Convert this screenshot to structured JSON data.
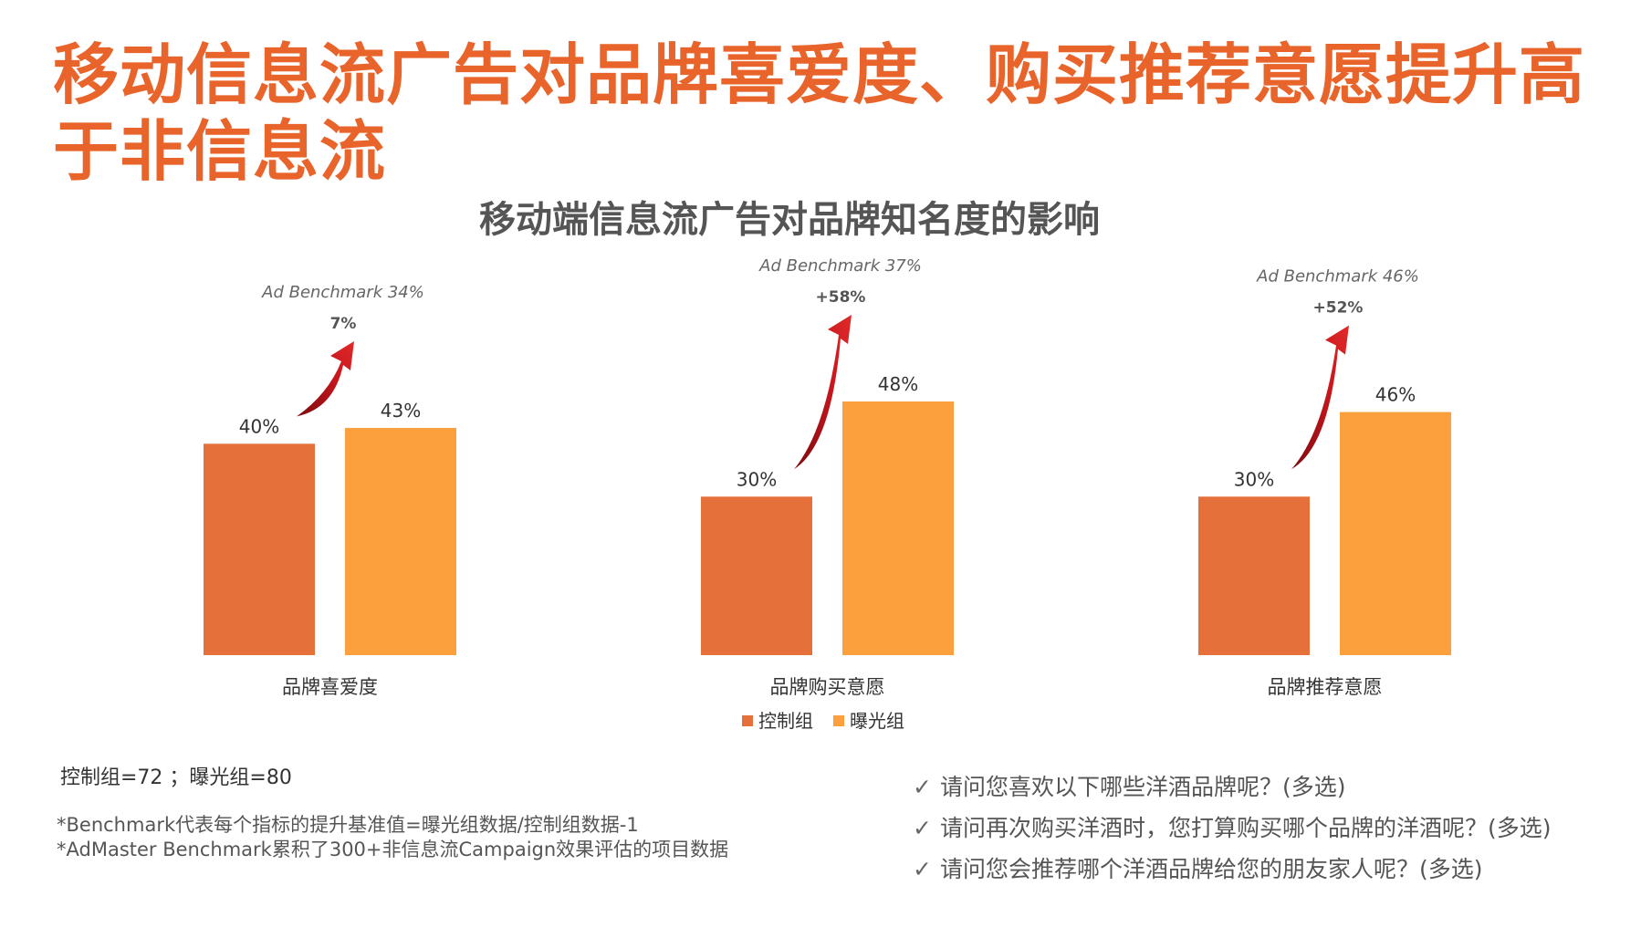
{
  "title": "移动信息流广告对品牌喜爱度、购买推荐意愿提升高于非信息流",
  "chart_data": {
    "type": "bar",
    "title": "移动端信息流广告对品牌知名度的影响",
    "categories": [
      "品牌喜爱度",
      "品牌购买意愿",
      "品牌推荐意愿"
    ],
    "series": [
      {
        "name": "控制组",
        "values": [
          40,
          30,
          30
        ],
        "labels": [
          "40%",
          "30%",
          "30%"
        ],
        "color": "#E5703A"
      },
      {
        "name": "曝光组",
        "values": [
          43,
          48,
          46
        ],
        "labels": [
          "43%",
          "48%",
          "46%"
        ],
        "color": "#FBA03C"
      }
    ],
    "unit": "%",
    "ylim": [
      0,
      48
    ],
    "lift_labels": [
      "7%",
      "+58%",
      "+52%"
    ],
    "benchmark_labels": [
      "Ad Benchmark 34%",
      "Ad Benchmark 37%",
      "Ad Benchmark 46%"
    ],
    "arrow_color": "#C8161D",
    "legend_position": "bottom-center",
    "grid": false
  },
  "notes": {
    "sample": "控制组=72 ；曝光组=80",
    "footnote1": "*Benchmark代表每个指标的提升基准值=曝光组数据/控制组数据-1",
    "footnote2": "*AdMaster  Benchmark累积了300+非信息流Campaign效果评估的项目数据"
  },
  "questions": [
    {
      "check": "✓",
      "text": "请问您喜欢以下哪些洋酒品牌呢？(多选)"
    },
    {
      "check": "✓",
      "text": "请问再次购买洋酒时，您打算购买哪个品牌的洋酒呢？(多选)"
    },
    {
      "check": "✓",
      "text": "请问您会推荐哪个洋酒品牌给您的朋友家人呢？(多选)"
    }
  ]
}
